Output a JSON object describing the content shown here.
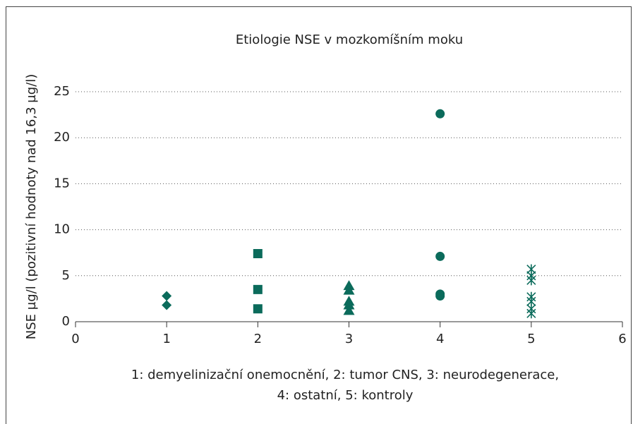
{
  "chart_data": {
    "type": "scatter",
    "title": "Etiologie NSE v mozkomíšním moku",
    "y_label": "NSE µg/l (pozitivní hodnoty nad 16,3 µg/l)",
    "x_label": [
      "1: demyelinizační onemocnění, 2: tumor CNS, 3: neurodegenerace,",
      "4: ostatní, 5: kontroly"
    ],
    "xlim": [
      0,
      6
    ],
    "xticks": [
      0,
      1,
      2,
      3,
      4,
      5,
      6
    ],
    "ylim": [
      0,
      25
    ],
    "yticks": [
      0,
      5,
      10,
      15,
      20,
      25
    ],
    "grid": true,
    "series": [
      {
        "marker": "diamond",
        "color": "#0b6b5b",
        "x": [
          1,
          1
        ],
        "values": [
          2.8,
          1.8
        ]
      },
      {
        "marker": "square",
        "color": "#0b6b5b",
        "x": [
          2,
          2,
          2
        ],
        "values": [
          7.4,
          3.5,
          1.4
        ]
      },
      {
        "marker": "triangle",
        "color": "#0b6b5b",
        "x": [
          3,
          3,
          3,
          3,
          3
        ],
        "values": [
          3.9,
          3.4,
          2.2,
          1.8,
          1.2
        ]
      },
      {
        "marker": "circle",
        "color": "#0b6b5b",
        "x": [
          4,
          4,
          4,
          4
        ],
        "values": [
          22.6,
          7.1,
          3.0,
          2.8
        ]
      },
      {
        "marker": "asterisk",
        "color": "#0b6b5b",
        "x": [
          5,
          5,
          5,
          5,
          5,
          5,
          5
        ],
        "values": [
          5.7,
          5.0,
          4.5,
          2.7,
          2.2,
          1.4,
          0.9
        ]
      }
    ]
  }
}
